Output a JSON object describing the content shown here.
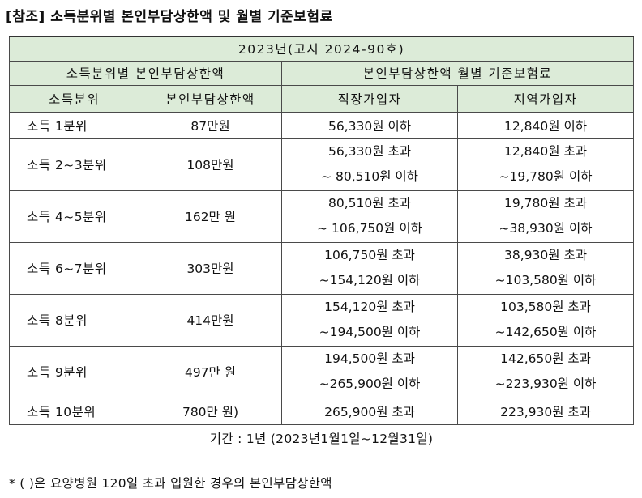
{
  "title": "[참조] 소득분위별 본인부담상한액 및 월별 기준보험료",
  "table": {
    "year_header": "2023년(고시 2024-90호)",
    "group_left": "소득분위별 본인부담상한액",
    "group_right": "본인부담상한액 월별 기준보험료",
    "col_income": "소득분위",
    "col_cap": "본인부담상한액",
    "col_employee": "직장가입자",
    "col_regional": "지역가입자",
    "rows": [
      {
        "bracket": "소득 1분위",
        "cap": "87만원",
        "emp1": "56,330원 이하",
        "emp2": "",
        "reg1": "12,840원 이하",
        "reg2": ""
      },
      {
        "bracket": "소득 2~3분위",
        "cap": "108만원",
        "emp1": "56,330원 초과",
        "emp2": "~ 80,510원 이하",
        "reg1": "12,840원 초과",
        "reg2": "~19,780원 이하"
      },
      {
        "bracket": "소득 4~5분위",
        "cap": "162만 원",
        "emp1": "80,510원 초과",
        "emp2": "~ 106,750원 이하",
        "reg1": "19,780원 초과",
        "reg2": "~38,930원 이하"
      },
      {
        "bracket": "소득 6~7분위",
        "cap": "303만원",
        "emp1": "106,750원 초과",
        "emp2": "~154,120원 이하",
        "reg1": "38,930원 초과",
        "reg2": "~103,580원 이하"
      },
      {
        "bracket": "소득 8분위",
        "cap": "414만원",
        "emp1": "154,120원 초과",
        "emp2": "~194,500원 이하",
        "reg1": "103,580원 초과",
        "reg2": "~142,650원 이하"
      },
      {
        "bracket": "소득 9분위",
        "cap": "497만 원",
        "emp1": "194,500원 초과",
        "emp2": "~265,900원 이하",
        "reg1": "142,650원 초과",
        "reg2": "~223,930원 이하"
      },
      {
        "bracket": "소득 10분위",
        "cap": "780만 원)",
        "emp1": "265,900원 초과",
        "emp2": "",
        "reg1": "223,930원 초과",
        "reg2": ""
      }
    ],
    "period": "기간 : 1년 (2023년1월1일~12월31일)"
  },
  "footnote": "* (   )은 요양병원 120일 초과 입원한 경우의 본인부담상한액",
  "colors": {
    "header_bg": "#dcebd8",
    "border": "#4a4a4a"
  }
}
